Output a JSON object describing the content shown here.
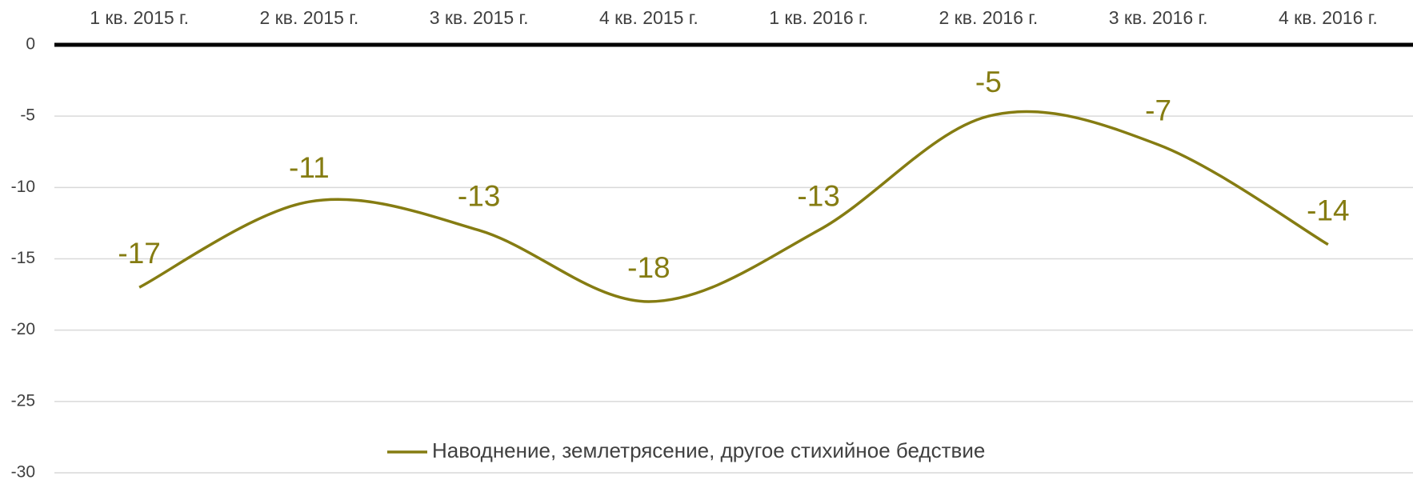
{
  "chart_data": {
    "type": "line",
    "categories": [
      "1 кв. 2015 г.",
      "2 кв. 2015 г.",
      "3 кв. 2015 г.",
      "4 кв. 2015 г.",
      "1 кв. 2016 г.",
      "2 кв. 2016 г.",
      "3 кв. 2016 г.",
      "4 кв. 2016 г."
    ],
    "series": [
      {
        "name": "Наводнение, землетрясение, другое стихийное бедствие",
        "color": "#857c12",
        "values": [
          -17,
          -11,
          -13,
          -18,
          -13,
          -5,
          -7,
          -14
        ]
      }
    ],
    "ylim": [
      -30,
      0
    ],
    "yticks": [
      0,
      -5,
      -10,
      -15,
      -20,
      -25,
      -30
    ],
    "grid": true,
    "smooth": true,
    "legend": "bottom"
  }
}
